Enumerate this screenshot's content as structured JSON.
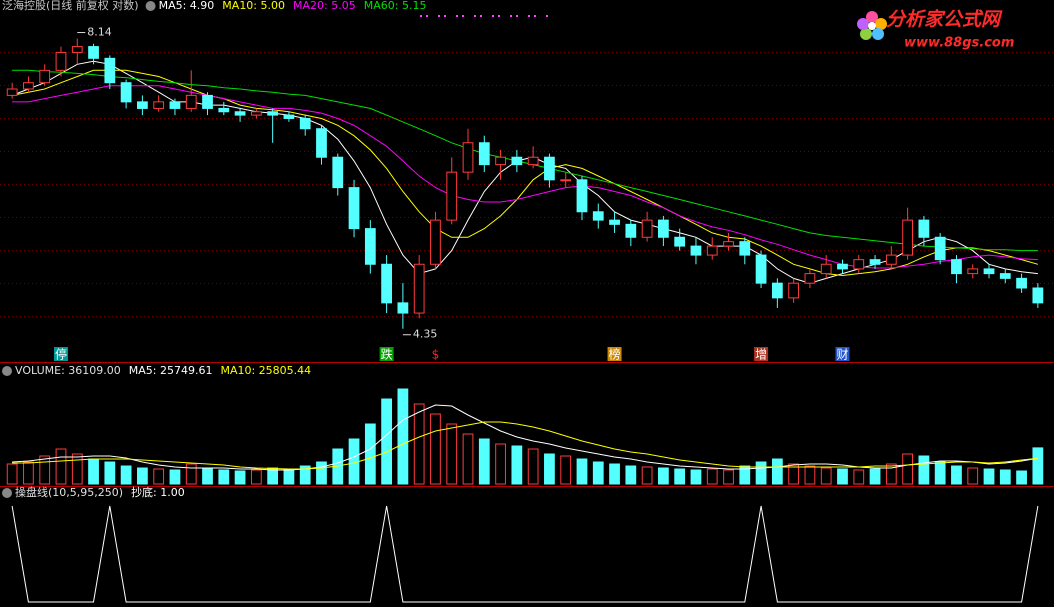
{
  "chart_data": [
    {
      "type": "candlestick",
      "title": "泛海控股(日线 前复权 对数)",
      "log": true,
      "ylim": [
        4.2,
        8.4
      ],
      "up_color": "#ff3c3c",
      "down_color": "#54ffff",
      "ohlc": [
        [
          7.2,
          7.4,
          7.15,
          7.3
        ],
        [
          7.3,
          7.5,
          7.25,
          7.4
        ],
        [
          7.4,
          7.7,
          7.35,
          7.6
        ],
        [
          7.6,
          8.0,
          7.5,
          7.9
        ],
        [
          7.9,
          8.14,
          7.7,
          8.0
        ],
        [
          8.0,
          8.05,
          7.7,
          7.8
        ],
        [
          7.8,
          7.85,
          7.3,
          7.4
        ],
        [
          7.4,
          7.45,
          7.0,
          7.1
        ],
        [
          7.1,
          7.2,
          6.9,
          7.0
        ],
        [
          7.0,
          7.2,
          6.95,
          7.1
        ],
        [
          7.1,
          7.15,
          6.9,
          7.0
        ],
        [
          7.0,
          7.6,
          6.95,
          7.2
        ],
        [
          7.2,
          7.25,
          6.9,
          7.0
        ],
        [
          7.0,
          7.1,
          6.9,
          6.95
        ],
        [
          6.95,
          7.0,
          6.8,
          6.9
        ],
        [
          6.9,
          7.0,
          6.85,
          6.95
        ],
        [
          6.95,
          7.0,
          6.5,
          6.9
        ],
        [
          6.9,
          6.95,
          6.8,
          6.85
        ],
        [
          6.85,
          6.9,
          6.6,
          6.7
        ],
        [
          6.7,
          6.75,
          6.2,
          6.3
        ],
        [
          6.3,
          6.35,
          5.8,
          5.9
        ],
        [
          5.9,
          6.0,
          5.3,
          5.4
        ],
        [
          5.4,
          5.5,
          4.9,
          5.0
        ],
        [
          5.0,
          5.1,
          4.5,
          4.6
        ],
        [
          4.6,
          4.8,
          4.35,
          4.5
        ],
        [
          4.5,
          5.1,
          4.45,
          5.0
        ],
        [
          5.0,
          5.6,
          4.95,
          5.5
        ],
        [
          5.5,
          6.3,
          5.45,
          6.1
        ],
        [
          6.1,
          6.7,
          6.0,
          6.5
        ],
        [
          6.5,
          6.6,
          6.1,
          6.2
        ],
        [
          6.2,
          6.4,
          6.0,
          6.3
        ],
        [
          6.3,
          6.4,
          6.1,
          6.2
        ],
        [
          6.2,
          6.45,
          6.15,
          6.3
        ],
        [
          6.3,
          6.35,
          5.9,
          6.0
        ],
        [
          6.0,
          6.1,
          5.9,
          6.0
        ],
        [
          6.0,
          6.05,
          5.5,
          5.6
        ],
        [
          5.6,
          5.7,
          5.4,
          5.5
        ],
        [
          5.5,
          5.6,
          5.35,
          5.45
        ],
        [
          5.45,
          5.5,
          5.2,
          5.3
        ],
        [
          5.3,
          5.6,
          5.25,
          5.5
        ],
        [
          5.5,
          5.55,
          5.2,
          5.3
        ],
        [
          5.3,
          5.4,
          5.15,
          5.2
        ],
        [
          5.2,
          5.3,
          5.0,
          5.1
        ],
        [
          5.1,
          5.3,
          5.05,
          5.2
        ],
        [
          5.2,
          5.35,
          5.15,
          5.25
        ],
        [
          5.25,
          5.3,
          5.0,
          5.1
        ],
        [
          5.1,
          5.15,
          4.75,
          4.8
        ],
        [
          4.8,
          4.85,
          4.55,
          4.65
        ],
        [
          4.65,
          4.85,
          4.6,
          4.8
        ],
        [
          4.8,
          4.95,
          4.75,
          4.9
        ],
        [
          4.9,
          5.1,
          4.85,
          5.0
        ],
        [
          5.0,
          5.05,
          4.9,
          4.95
        ],
        [
          4.95,
          5.1,
          4.9,
          5.05
        ],
        [
          5.05,
          5.1,
          4.95,
          5.0
        ],
        [
          5.0,
          5.2,
          4.95,
          5.1
        ],
        [
          5.1,
          5.65,
          5.05,
          5.5
        ],
        [
          5.5,
          5.55,
          5.2,
          5.3
        ],
        [
          5.3,
          5.35,
          5.0,
          5.05
        ],
        [
          5.05,
          5.1,
          4.8,
          4.9
        ],
        [
          4.9,
          5.0,
          4.85,
          4.95
        ],
        [
          4.95,
          5.0,
          4.85,
          4.9
        ],
        [
          4.9,
          4.95,
          4.8,
          4.85
        ],
        [
          4.85,
          4.9,
          4.7,
          4.75
        ],
        [
          4.75,
          4.8,
          4.55,
          4.6
        ]
      ],
      "series": [
        {
          "name": "MA5: 4.90",
          "color": "#ffffff",
          "values": [
            7.2,
            7.3,
            7.4,
            7.55,
            7.7,
            7.75,
            7.7,
            7.55,
            7.4,
            7.25,
            7.1,
            7.1,
            7.05,
            7.05,
            7.0,
            6.95,
            6.93,
            6.9,
            6.85,
            6.75,
            6.55,
            6.25,
            5.9,
            5.45,
            5.1,
            4.9,
            4.95,
            5.15,
            5.5,
            5.85,
            6.1,
            6.25,
            6.3,
            6.2,
            6.15,
            5.95,
            5.8,
            5.6,
            5.5,
            5.45,
            5.4,
            5.35,
            5.3,
            5.2,
            5.2,
            5.2,
            5.1,
            4.95,
            4.85,
            4.8,
            4.85,
            4.9,
            4.95,
            5.0,
            5.05,
            5.15,
            5.25,
            5.3,
            5.25,
            5.15,
            5.0,
            4.95,
            4.92,
            4.9
          ]
        },
        {
          "name": "MA10: 5.00",
          "color": "#ffff00",
          "values": [
            7.2,
            7.25,
            7.3,
            7.4,
            7.5,
            7.6,
            7.6,
            7.6,
            7.55,
            7.5,
            7.4,
            7.3,
            7.2,
            7.15,
            7.05,
            7.0,
            6.98,
            6.95,
            6.9,
            6.85,
            6.75,
            6.6,
            6.4,
            6.15,
            5.85,
            5.6,
            5.4,
            5.3,
            5.3,
            5.4,
            5.55,
            5.75,
            6.0,
            6.15,
            6.2,
            6.15,
            6.05,
            5.95,
            5.85,
            5.75,
            5.65,
            5.55,
            5.45,
            5.35,
            5.3,
            5.28,
            5.2,
            5.1,
            5.0,
            4.95,
            4.9,
            4.88,
            4.9,
            4.92,
            4.95,
            5.0,
            5.08,
            5.15,
            5.18,
            5.18,
            5.15,
            5.1,
            5.05,
            5.0
          ]
        },
        {
          "name": "MA20: 5.05",
          "color": "#ff00ff",
          "values": [
            7.1,
            7.1,
            7.15,
            7.2,
            7.25,
            7.3,
            7.35,
            7.35,
            7.35,
            7.35,
            7.3,
            7.25,
            7.2,
            7.15,
            7.1,
            7.05,
            7.0,
            7.0,
            6.97,
            6.93,
            6.85,
            6.75,
            6.6,
            6.45,
            6.25,
            6.05,
            5.9,
            5.8,
            5.75,
            5.72,
            5.72,
            5.75,
            5.8,
            5.85,
            5.9,
            5.92,
            5.9,
            5.85,
            5.8,
            5.72,
            5.65,
            5.55,
            5.48,
            5.42,
            5.38,
            5.33,
            5.27,
            5.22,
            5.16,
            5.1,
            5.05,
            5.0,
            4.97,
            4.96,
            4.96,
            4.98,
            5.0,
            5.03,
            5.05,
            5.08,
            5.1,
            5.08,
            5.06,
            5.05
          ]
        },
        {
          "name": "MA60: 5.15",
          "color": "#00e000",
          "values": [
            7.6,
            7.6,
            7.58,
            7.57,
            7.55,
            7.53,
            7.5,
            7.48,
            7.45,
            7.42,
            7.4,
            7.37,
            7.35,
            7.32,
            7.3,
            7.27,
            7.25,
            7.22,
            7.2,
            7.15,
            7.1,
            7.05,
            7.0,
            6.9,
            6.8,
            6.7,
            6.6,
            6.5,
            6.42,
            6.35,
            6.3,
            6.25,
            6.2,
            6.15,
            6.1,
            6.05,
            6.0,
            5.95,
            5.9,
            5.85,
            5.8,
            5.75,
            5.7,
            5.65,
            5.6,
            5.55,
            5.5,
            5.45,
            5.4,
            5.35,
            5.32,
            5.3,
            5.28,
            5.26,
            5.24,
            5.22,
            5.2,
            5.19,
            5.18,
            5.17,
            5.16,
            5.16,
            5.15,
            5.15
          ]
        }
      ],
      "annotations": [
        {
          "index": 4,
          "text": "8.14"
        },
        {
          "index": 24,
          "text": "4.35"
        }
      ],
      "events": [
        {
          "index": 3,
          "label": "停",
          "color": "#009999"
        },
        {
          "index": 23,
          "label": "跌",
          "color": "#00a000"
        },
        {
          "index": 26,
          "label": "$",
          "color": "#ff2020"
        },
        {
          "index": 37,
          "label": "榜",
          "color": "#cc8800"
        },
        {
          "index": 46,
          "label": "增",
          "color": "#aa3322"
        },
        {
          "index": 51,
          "label": "财",
          "color": "#2255cc"
        }
      ]
    },
    {
      "type": "bar",
      "title": "VOLUME: 36109.00",
      "ylim": [
        0,
        100000
      ],
      "values": [
        20000,
        22000,
        28000,
        35000,
        30000,
        25000,
        22000,
        18000,
        16000,
        15000,
        14000,
        20000,
        15000,
        14000,
        13000,
        14000,
        16000,
        15000,
        18000,
        22000,
        35000,
        45000,
        60000,
        85000,
        95000,
        80000,
        70000,
        60000,
        50000,
        45000,
        40000,
        38000,
        35000,
        30000,
        28000,
        25000,
        22000,
        20000,
        18000,
        17000,
        16000,
        15000,
        14000,
        15000,
        14000,
        18000,
        22000,
        25000,
        20000,
        18000,
        16000,
        15000,
        14000,
        15000,
        20000,
        30000,
        28000,
        22000,
        18000,
        16000,
        15000,
        14000,
        13000,
        36109
      ],
      "series": [
        {
          "name": "MA5: 25749.61",
          "color": "#ffffff",
          "values": [
            22000,
            23000,
            25000,
            27000,
            27000,
            28000,
            28000,
            26000,
            22000,
            19000,
            17000,
            16000,
            16000,
            16000,
            15000,
            15000,
            14000,
            14000,
            15000,
            17000,
            21000,
            27000,
            35000,
            49000,
            64000,
            72000,
            79000,
            78000,
            69000,
            61000,
            53000,
            47000,
            43000,
            40000,
            36000,
            33000,
            30000,
            27000,
            25000,
            22000,
            20000,
            18000,
            17000,
            16000,
            15000,
            15000,
            16000,
            17000,
            19000,
            20000,
            20000,
            19000,
            17000,
            16000,
            16000,
            19000,
            21000,
            23000,
            23000,
            22000,
            20000,
            21000,
            23000,
            25749.61
          ]
        },
        {
          "name": "MA10: 25805.44",
          "color": "#ffff00",
          "values": [
            21000,
            21000,
            22000,
            23000,
            24000,
            25000,
            25000,
            25000,
            24000,
            23000,
            22000,
            21000,
            20000,
            19000,
            17000,
            16000,
            15500,
            15000,
            15000,
            16000,
            18000,
            21000,
            26000,
            32000,
            40000,
            47000,
            53000,
            56000,
            59000,
            62000,
            62000,
            60000,
            57000,
            53000,
            48000,
            43000,
            39000,
            35000,
            32000,
            30000,
            27000,
            24000,
            22000,
            20000,
            18000,
            17000,
            17000,
            17000,
            17000,
            17000,
            17000,
            17000,
            17000,
            18000,
            18000,
            19000,
            20000,
            21000,
            22000,
            22000,
            21000,
            22000,
            24000,
            25805.44
          ]
        }
      ]
    },
    {
      "type": "line",
      "title": "操盘线(10,5,95,250)",
      "ylim": [
        0,
        1
      ],
      "series": [
        {
          "name": "抄底: 1.00",
          "color": "#ffffff",
          "values": [
            1,
            0,
            0,
            0,
            0,
            0,
            1,
            0,
            0,
            0,
            0,
            0,
            0,
            0,
            0,
            0,
            0,
            0,
            0,
            0,
            0,
            0,
            0,
            1,
            0,
            0,
            0,
            0,
            0,
            0,
            0,
            0,
            0,
            0,
            0,
            0,
            0,
            0,
            0,
            0,
            0,
            0,
            0,
            0,
            0,
            0,
            1,
            0,
            0,
            0,
            0,
            0,
            0,
            0,
            0,
            0,
            0,
            0,
            0,
            0,
            0,
            0,
            0,
            1
          ]
        }
      ]
    }
  ],
  "watermark": {
    "title": "分析家公式网",
    "url": "www.88gs.com"
  }
}
